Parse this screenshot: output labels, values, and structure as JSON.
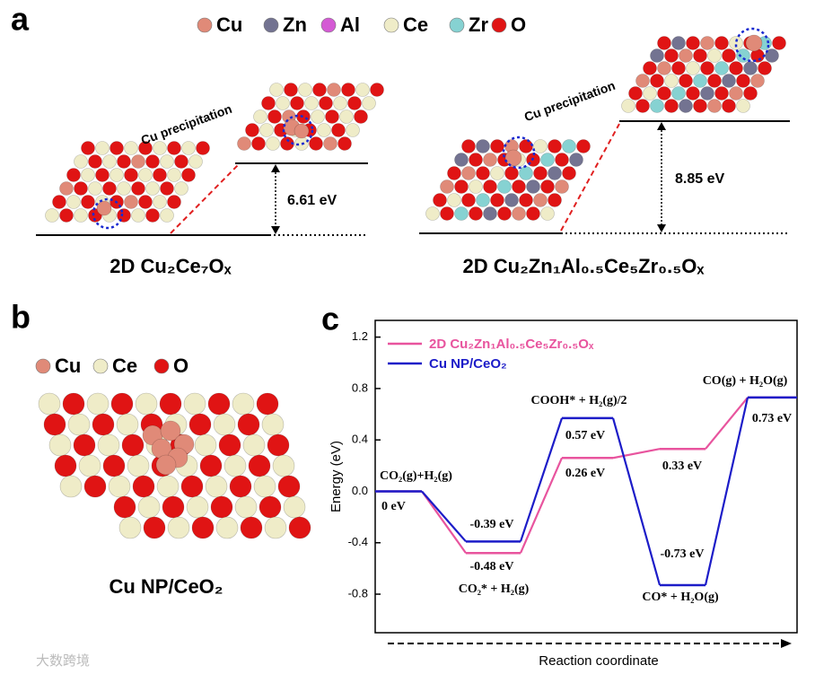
{
  "panel_a": {
    "label": "a",
    "legend": [
      {
        "name": "Cu",
        "color": "#e08a78"
      },
      {
        "name": "Zn",
        "color": "#737391"
      },
      {
        "name": "Al",
        "color": "#d45ad4"
      },
      {
        "name": "Ce",
        "color": "#efecc8"
      },
      {
        "name": "Zr",
        "color": "#86d2d2"
      },
      {
        "name": "O",
        "color": "#e01414"
      }
    ],
    "left": {
      "annotation": "Cu precipitation",
      "energy": "6.61 eV",
      "caption": "2D Cu₂Ce₇Oₓ"
    },
    "right": {
      "annotation": "Cu precipitation",
      "energy": "8.85 eV",
      "caption": "2D Cu₂Zn₁Al₀.₅Ce₅Zr₀.₅Oₓ"
    }
  },
  "panel_b": {
    "label": "b",
    "legend": [
      {
        "name": "Cu",
        "color": "#e08a78"
      },
      {
        "name": "Ce",
        "color": "#efecc8"
      },
      {
        "name": "O",
        "color": "#e01414"
      }
    ],
    "caption": "Cu NP/CeO₂"
  },
  "panel_c_label": "c",
  "watermark": "大数跨境",
  "chart_data": {
    "type": "line",
    "ylabel": "Energy (eV)",
    "xlabel": "Reaction coordinate",
    "categories": [
      "CO₂(g)+H₂(g)",
      "CO₂* + H₂(g)",
      "COOH* + H₂(g)/2",
      "CO* + H₂O(g)",
      "CO(g) + H₂O(g)"
    ],
    "series": [
      {
        "name": "2D Cu₂Zn₁Al₀.₅Ce₅Zr₀.₅Oₓ",
        "color": "#e8549e",
        "values": [
          0,
          -0.48,
          0.26,
          0.33,
          0.73
        ],
        "value_labels": [
          "0 eV",
          "-0.48 eV",
          "0.26 eV",
          "0.33 eV",
          null
        ]
      },
      {
        "name": "Cu NP/CeO₂",
        "color": "#1c1cc8",
        "values": [
          0,
          -0.39,
          0.57,
          -0.73,
          0.73
        ],
        "value_labels": [
          null,
          "-0.39 eV",
          "0.57 eV",
          "-0.73 eV",
          "0.73 eV"
        ]
      }
    ],
    "ylim": [
      -1.1,
      1.33
    ],
    "yticks": [
      {
        "value": -0.8,
        "label": "-0.8"
      },
      {
        "value": -0.4,
        "label": "-0.4"
      },
      {
        "value": 0,
        "label": "0.0"
      },
      {
        "value": 0.4,
        "label": "0.4"
      },
      {
        "value": 0.8,
        "label": "0.8"
      },
      {
        "value": 1.2,
        "label": "1.2"
      }
    ],
    "legend": "upper left"
  }
}
